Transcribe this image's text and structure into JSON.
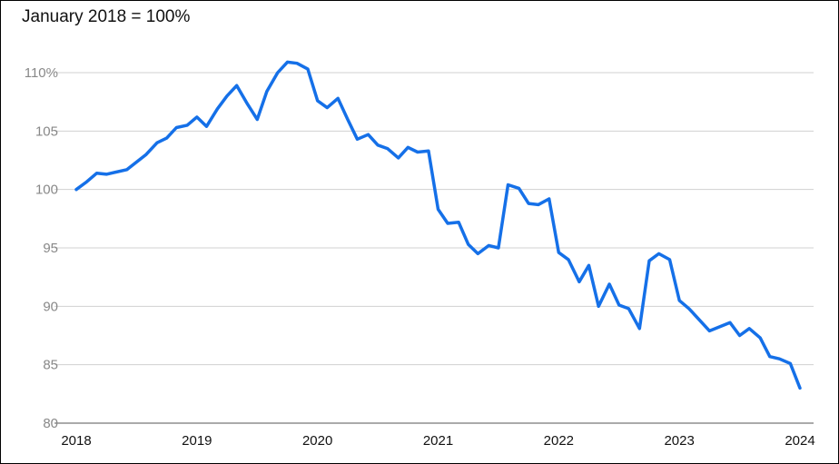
{
  "chart_data": {
    "type": "line",
    "title": "January 2018 = 100%",
    "xlabel": "",
    "ylabel": "",
    "xlim": [
      2018,
      2024
    ],
    "ylim": [
      80,
      110
    ],
    "x_ticks": [
      {
        "value": 2018,
        "label": "2018"
      },
      {
        "value": 2019,
        "label": "2019"
      },
      {
        "value": 2020,
        "label": "2020"
      },
      {
        "value": 2021,
        "label": "2021"
      },
      {
        "value": 2022,
        "label": "2022"
      },
      {
        "value": 2023,
        "label": "2023"
      },
      {
        "value": 2024,
        "label": "2024"
      }
    ],
    "y_ticks": [
      {
        "value": 80,
        "label": "80"
      },
      {
        "value": 85,
        "label": "85"
      },
      {
        "value": 90,
        "label": "90"
      },
      {
        "value": 95,
        "label": "95"
      },
      {
        "value": 100,
        "label": "100"
      },
      {
        "value": 105,
        "label": "105"
      },
      {
        "value": 110,
        "label": "110%"
      }
    ],
    "grid": true,
    "legend": "none",
    "colors": {
      "line": "#1570e8",
      "grid": "#d0d0d0",
      "axis": "#555555",
      "tick_label": "#888888",
      "x_tick_label": "#111111"
    },
    "series": [
      {
        "values": [
          [
            2018.0,
            100.0
          ],
          [
            2018.08,
            100.6
          ],
          [
            2018.17,
            101.4
          ],
          [
            2018.25,
            101.3
          ],
          [
            2018.42,
            101.7
          ],
          [
            2018.58,
            103.0
          ],
          [
            2018.67,
            104.0
          ],
          [
            2018.75,
            104.4
          ],
          [
            2018.83,
            105.3
          ],
          [
            2018.92,
            105.5
          ],
          [
            2019.0,
            106.2
          ],
          [
            2019.08,
            105.4
          ],
          [
            2019.17,
            106.9
          ],
          [
            2019.25,
            108.0
          ],
          [
            2019.33,
            108.9
          ],
          [
            2019.42,
            107.3
          ],
          [
            2019.5,
            106.0
          ],
          [
            2019.58,
            108.4
          ],
          [
            2019.67,
            110.0
          ],
          [
            2019.75,
            110.9
          ],
          [
            2019.83,
            110.8
          ],
          [
            2019.92,
            110.3
          ],
          [
            2020.0,
            107.6
          ],
          [
            2020.08,
            107.0
          ],
          [
            2020.17,
            107.8
          ],
          [
            2020.25,
            106.0
          ],
          [
            2020.33,
            104.3
          ],
          [
            2020.42,
            104.7
          ],
          [
            2020.5,
            103.8
          ],
          [
            2020.58,
            103.5
          ],
          [
            2020.67,
            102.7
          ],
          [
            2020.75,
            103.6
          ],
          [
            2020.83,
            103.2
          ],
          [
            2020.92,
            103.3
          ],
          [
            2021.0,
            98.3
          ],
          [
            2021.08,
            97.1
          ],
          [
            2021.17,
            97.2
          ],
          [
            2021.25,
            95.3
          ],
          [
            2021.33,
            94.5
          ],
          [
            2021.42,
            95.2
          ],
          [
            2021.5,
            95.0
          ],
          [
            2021.58,
            100.4
          ],
          [
            2021.67,
            100.1
          ],
          [
            2021.75,
            98.8
          ],
          [
            2021.83,
            98.7
          ],
          [
            2021.92,
            99.2
          ],
          [
            2022.0,
            94.6
          ],
          [
            2022.08,
            94.0
          ],
          [
            2022.17,
            92.1
          ],
          [
            2022.25,
            93.5
          ],
          [
            2022.33,
            90.0
          ],
          [
            2022.42,
            91.9
          ],
          [
            2022.5,
            90.1
          ],
          [
            2022.58,
            89.8
          ],
          [
            2022.67,
            88.1
          ],
          [
            2022.75,
            93.9
          ],
          [
            2022.83,
            94.5
          ],
          [
            2022.92,
            94.0
          ],
          [
            2023.0,
            90.5
          ],
          [
            2023.08,
            89.8
          ],
          [
            2023.25,
            87.9
          ],
          [
            2023.42,
            88.6
          ],
          [
            2023.5,
            87.5
          ],
          [
            2023.58,
            88.1
          ],
          [
            2023.67,
            87.3
          ],
          [
            2023.75,
            85.7
          ],
          [
            2023.83,
            85.5
          ],
          [
            2023.92,
            85.1
          ],
          [
            2024.0,
            83.0
          ]
        ]
      }
    ]
  }
}
